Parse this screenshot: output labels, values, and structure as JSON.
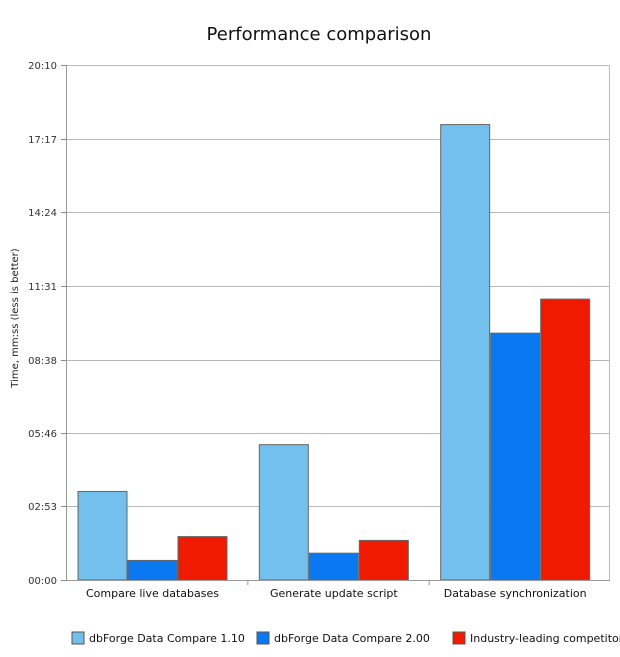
{
  "chart_data": {
    "type": "bar",
    "title": "Performance comparison",
    "ylabel": "Time, mm:ss (less is better)",
    "xlabel": "",
    "categories": [
      "Compare live databases",
      "Generate update script",
      "Database synchronization"
    ],
    "y_ticks": [
      "00:00",
      "02:53",
      "05:46",
      "08:38",
      "11:31",
      "14:24",
      "17:17",
      "20:10"
    ],
    "y_tick_values": [
      0,
      173,
      346,
      518,
      691,
      864,
      1037,
      1210
    ],
    "ylim": [
      0,
      1210
    ],
    "grid": true,
    "legend_position": "bottom",
    "series": [
      {
        "name": "dbForge Data Compare 1.10",
        "color": "#74c0ec",
        "values": [
          208,
          318,
          1070
        ]
      },
      {
        "name": "dbForge Data Compare 2.00",
        "color": "#0a78f0",
        "values": [
          46,
          63,
          580
        ]
      },
      {
        "name": "Industry-leading competitor",
        "color": "#ef1a00",
        "values": [
          102,
          93,
          660
        ]
      }
    ]
  }
}
